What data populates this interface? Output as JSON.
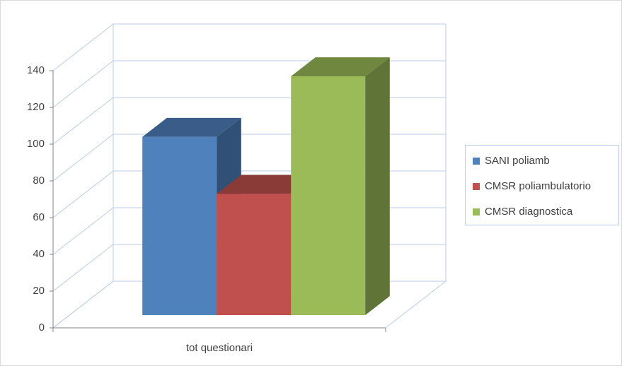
{
  "chart_data": {
    "type": "bar",
    "categories": [
      "tot questionari"
    ],
    "series": [
      {
        "name": "SANI poliamb",
        "color": "#4f81bd",
        "values": [
          97
        ]
      },
      {
        "name": "CMSR poliambulatorio",
        "color": "#c0504d",
        "values": [
          66
        ]
      },
      {
        "name": "CMSR diagnostica",
        "color": "#9bbb59",
        "values": [
          130
        ]
      }
    ],
    "ylim": [
      0,
      140
    ],
    "yticks": [
      0,
      20,
      40,
      60,
      80,
      100,
      120,
      140
    ],
    "grid": true,
    "legend": "right"
  }
}
